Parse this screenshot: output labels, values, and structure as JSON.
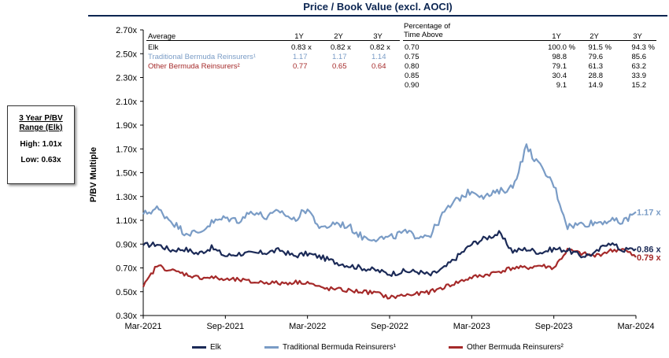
{
  "title": "Price / Book Value (excl. AOCI)",
  "colors": {
    "elk": "#1b2a57",
    "trad": "#7a9cc6",
    "other": "#a52a2a",
    "title": "#0b2551"
  },
  "range_box": {
    "heading": "3 Year P/BV Range (Elk)",
    "high": "High: 1.01x",
    "low": "Low: 0.63x"
  },
  "average_table": {
    "headers": [
      "Average",
      "1Y",
      "2Y",
      "3Y"
    ],
    "rows": [
      {
        "name": "Elk",
        "v": [
          "0.83 x",
          "0.82 x",
          "0.82 x"
        ]
      },
      {
        "name": "Traditional Bermuda Reinsurers¹",
        "v": [
          "1.17",
          "1.17",
          "1.14"
        ]
      },
      {
        "name": "Other Bermuda Reinsurers²",
        "v": [
          "0.77",
          "0.65",
          "0.64"
        ]
      }
    ]
  },
  "pct_table": {
    "header_label": "Percentage of Time Above",
    "headers": [
      "1Y",
      "2Y",
      "3Y"
    ],
    "rows": [
      {
        "t": "0.70",
        "v": [
          "100.0 %",
          "91.5 %",
          "94.3 %"
        ]
      },
      {
        "t": "0.75",
        "v": [
          "98.8",
          "79.6",
          "85.6"
        ]
      },
      {
        "t": "0.80",
        "v": [
          "79.1",
          "61.3",
          "63.2"
        ]
      },
      {
        "t": "0.85",
        "v": [
          "30.4",
          "28.8",
          "33.9"
        ]
      },
      {
        "t": "0.90",
        "v": [
          "9.1",
          "14.9",
          "15.2"
        ]
      }
    ]
  },
  "chart_data": {
    "type": "line",
    "title": "Price / Book Value (excl. AOCI)",
    "ylabel": "P/BV Multiple",
    "ylim": [
      0.3,
      2.7
    ],
    "yticks": [
      "0.30x",
      "0.50x",
      "0.70x",
      "0.90x",
      "1.10x",
      "1.30x",
      "1.50x",
      "1.70x",
      "1.90x",
      "2.10x",
      "2.30x",
      "2.50x",
      "2.70x"
    ],
    "xticks": [
      "Mar-2021",
      "Sep-2021",
      "Mar-2022",
      "Sep-2022",
      "Mar-2023",
      "Sep-2023",
      "Mar-2024"
    ],
    "x_months": [
      0,
      1,
      2,
      3,
      4,
      5,
      6,
      7,
      8,
      9,
      10,
      11,
      12,
      13,
      14,
      15,
      16,
      17,
      18,
      19,
      20,
      21,
      22,
      23,
      24,
      25,
      26,
      27,
      28,
      29,
      30,
      31,
      32,
      33,
      34,
      35,
      36
    ],
    "series": [
      {
        "name": "Elk",
        "end_label": "0.86 x",
        "values": [
          0.89,
          0.9,
          0.85,
          0.86,
          0.82,
          0.87,
          0.8,
          0.82,
          0.82,
          0.83,
          0.85,
          0.8,
          0.82,
          0.79,
          0.75,
          0.72,
          0.7,
          0.68,
          0.65,
          0.67,
          0.67,
          0.64,
          0.7,
          0.8,
          0.9,
          0.95,
          0.99,
          0.84,
          0.86,
          0.83,
          0.86,
          0.85,
          0.8,
          0.82,
          0.92,
          0.85,
          0.86
        ]
      },
      {
        "name": "Traditional Bermuda Reinsurers¹",
        "end_label": "1.17 x",
        "values": [
          1.15,
          1.2,
          1.1,
          1.0,
          0.99,
          1.08,
          1.12,
          1.1,
          1.18,
          1.12,
          1.18,
          1.1,
          1.2,
          1.02,
          1.08,
          1.05,
          0.96,
          0.95,
          0.95,
          1.0,
          0.97,
          0.98,
          1.17,
          1.28,
          1.35,
          1.3,
          1.34,
          1.38,
          1.72,
          1.55,
          1.4,
          1.05,
          1.07,
          1.08,
          1.1,
          1.08,
          1.17
        ]
      },
      {
        "name": "Other Bermuda Reinsurers²",
        "end_label": "0.79 x",
        "values": [
          0.54,
          0.72,
          0.68,
          0.65,
          0.62,
          0.62,
          0.6,
          0.6,
          0.58,
          0.58,
          0.57,
          0.58,
          0.58,
          0.53,
          0.52,
          0.51,
          0.5,
          0.49,
          0.45,
          0.47,
          0.48,
          0.5,
          0.54,
          0.58,
          0.62,
          0.64,
          0.67,
          0.7,
          0.7,
          0.72,
          0.7,
          0.85,
          0.82,
          0.8,
          0.84,
          0.86,
          0.79
        ]
      }
    ]
  },
  "legend": [
    "Elk",
    "Traditional Bermuda Reinsurers¹",
    "Other Bermuda Reinsurers²"
  ]
}
